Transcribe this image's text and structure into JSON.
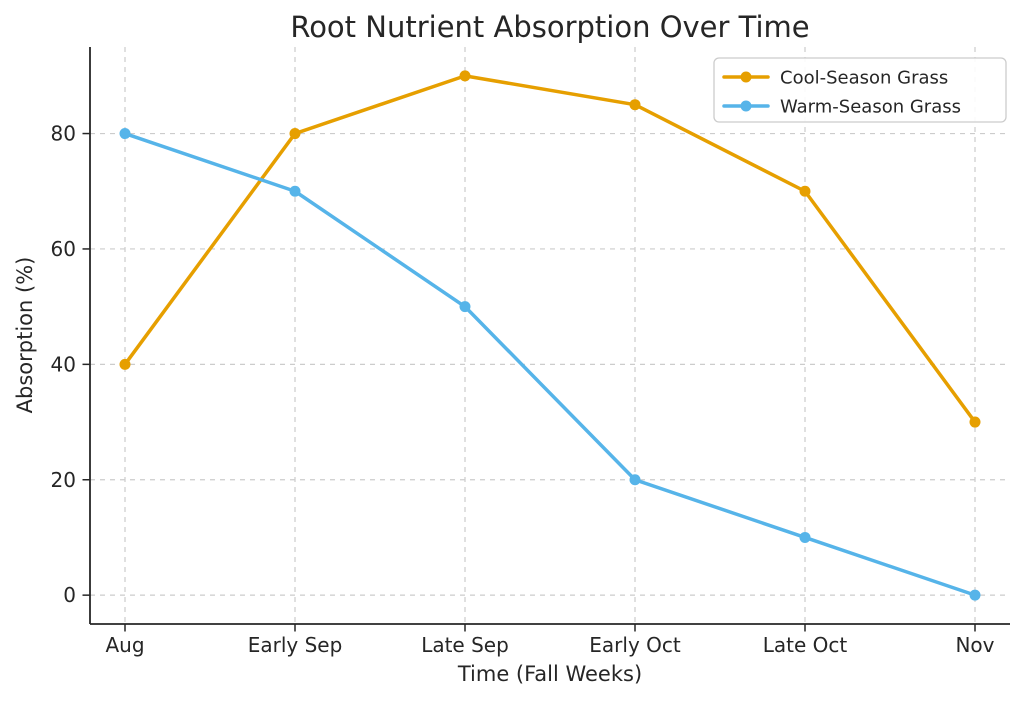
{
  "chart_data": {
    "type": "line",
    "title": "Root Nutrient Absorption Over Time",
    "xlabel": "Time (Fall Weeks)",
    "ylabel": "Absorption (%)",
    "categories": [
      "Aug",
      "Early Sep",
      "Late Sep",
      "Early Oct",
      "Late Oct",
      "Nov"
    ],
    "series": [
      {
        "name": "Cool-Season Grass",
        "color": "#E69F00",
        "values": [
          40,
          80,
          90,
          85,
          70,
          30
        ]
      },
      {
        "name": "Warm-Season Grass",
        "color": "#56B4E9",
        "values": [
          80,
          70,
          50,
          20,
          10,
          0
        ]
      }
    ],
    "yticks": [
      0,
      20,
      40,
      60,
      80
    ],
    "ylim": [
      -5,
      95
    ],
    "grid": true,
    "grid_style": "dashed",
    "grid_color": "#cccccc",
    "axis_color": "#262626",
    "text_color": "#262626",
    "legend": {
      "position": "upper right",
      "frame_color": "#cccccc",
      "background": "#ffffff",
      "entries": [
        "Cool-Season Grass",
        "Warm-Season Grass"
      ]
    }
  }
}
